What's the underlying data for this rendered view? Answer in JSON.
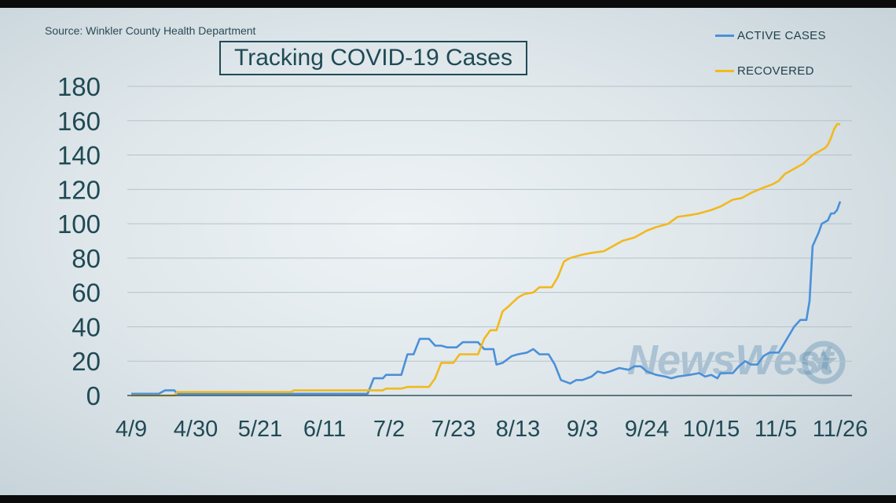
{
  "source": "Source: Winkler County Health Department",
  "title": "Tracking COVID-19 Cases",
  "watermark": "NewsWest",
  "chart_data": {
    "type": "line",
    "title": "Tracking COVID-19 Cases",
    "xlabel": "",
    "ylabel": "",
    "ylim": [
      0,
      180
    ],
    "y_ticks": [
      0,
      20,
      40,
      60,
      80,
      100,
      120,
      140,
      160,
      180
    ],
    "x_ticks": [
      "4/9",
      "4/30",
      "5/21",
      "6/11",
      "7/2",
      "7/23",
      "8/13",
      "9/3",
      "9/24",
      "10/15",
      "11/5",
      "11/26"
    ],
    "grid": true,
    "legend": "top-right",
    "series": [
      {
        "name": "ACTIVE CASES",
        "color": "#4a90d9",
        "points": [
          [
            "4/9",
            1
          ],
          [
            "4/18",
            1
          ],
          [
            "4/20",
            3
          ],
          [
            "4/23",
            3
          ],
          [
            "4/24",
            1
          ],
          [
            "6/25",
            1
          ],
          [
            "6/27",
            10
          ],
          [
            "6/30",
            10
          ],
          [
            "7/1",
            12
          ],
          [
            "7/6",
            12
          ],
          [
            "7/8",
            24
          ],
          [
            "7/10",
            24
          ],
          [
            "7/12",
            33
          ],
          [
            "7/15",
            33
          ],
          [
            "7/17",
            29
          ],
          [
            "7/19",
            29
          ],
          [
            "7/21",
            28
          ],
          [
            "7/24",
            28
          ],
          [
            "7/26",
            31
          ],
          [
            "7/31",
            31
          ],
          [
            "8/2",
            27
          ],
          [
            "8/5",
            27
          ],
          [
            "8/6",
            18
          ],
          [
            "8/8",
            19
          ],
          [
            "8/11",
            23
          ],
          [
            "8/13",
            24
          ],
          [
            "8/16",
            25
          ],
          [
            "8/18",
            27
          ],
          [
            "8/20",
            24
          ],
          [
            "8/23",
            24
          ],
          [
            "8/25",
            18
          ],
          [
            "8/27",
            9
          ],
          [
            "8/30",
            7
          ],
          [
            "9/1",
            9
          ],
          [
            "9/3",
            9
          ],
          [
            "9/6",
            11
          ],
          [
            "9/8",
            14
          ],
          [
            "9/10",
            13
          ],
          [
            "9/12",
            14
          ],
          [
            "9/15",
            16
          ],
          [
            "9/18",
            15
          ],
          [
            "9/20",
            17
          ],
          [
            "9/22",
            17
          ],
          [
            "9/24",
            14
          ],
          [
            "9/27",
            12
          ],
          [
            "9/30",
            11
          ],
          [
            "10/2",
            10
          ],
          [
            "10/4",
            11
          ],
          [
            "10/8",
            12
          ],
          [
            "10/11",
            13
          ],
          [
            "10/13",
            11
          ],
          [
            "10/15",
            12
          ],
          [
            "10/17",
            10
          ],
          [
            "10/18",
            13
          ],
          [
            "10/22",
            13
          ],
          [
            "10/24",
            17
          ],
          [
            "10/26",
            20
          ],
          [
            "10/28",
            18
          ],
          [
            "10/30",
            18
          ],
          [
            "11/1",
            23
          ],
          [
            "11/3",
            25
          ],
          [
            "11/6",
            25
          ],
          [
            "11/7",
            28
          ],
          [
            "11/9",
            34
          ],
          [
            "11/11",
            40
          ],
          [
            "11/13",
            44
          ],
          [
            "11/15",
            44
          ],
          [
            "11/16",
            55
          ],
          [
            "11/17",
            87
          ],
          [
            "11/19",
            95
          ],
          [
            "11/20",
            100
          ],
          [
            "11/22",
            102
          ],
          [
            "11/23",
            106
          ],
          [
            "11/24",
            106
          ],
          [
            "11/25",
            108
          ],
          [
            "11/26",
            113
          ]
        ]
      },
      {
        "name": "RECOVERED",
        "color": "#f2b81d",
        "points": [
          [
            "4/9",
            0
          ],
          [
            "4/23",
            0
          ],
          [
            "4/24",
            2
          ],
          [
            "5/10",
            2
          ],
          [
            "5/31",
            2
          ],
          [
            "6/1",
            3
          ],
          [
            "6/11",
            3
          ],
          [
            "6/30",
            3
          ],
          [
            "7/1",
            4
          ],
          [
            "7/6",
            4
          ],
          [
            "7/8",
            5
          ],
          [
            "7/15",
            5
          ],
          [
            "7/17",
            10
          ],
          [
            "7/19",
            19
          ],
          [
            "7/23",
            19
          ],
          [
            "7/25",
            24
          ],
          [
            "7/31",
            24
          ],
          [
            "8/2",
            33
          ],
          [
            "8/4",
            38
          ],
          [
            "8/6",
            38
          ],
          [
            "8/8",
            49
          ],
          [
            "8/10",
            52
          ],
          [
            "8/13",
            57
          ],
          [
            "8/15",
            59
          ],
          [
            "8/18",
            60
          ],
          [
            "8/20",
            63
          ],
          [
            "8/24",
            63
          ],
          [
            "8/26",
            69
          ],
          [
            "8/28",
            78
          ],
          [
            "8/30",
            80
          ],
          [
            "9/3",
            82
          ],
          [
            "9/6",
            83
          ],
          [
            "9/10",
            84
          ],
          [
            "9/13",
            87
          ],
          [
            "9/16",
            90
          ],
          [
            "9/20",
            92
          ],
          [
            "9/24",
            96
          ],
          [
            "9/27",
            98
          ],
          [
            "10/1",
            100
          ],
          [
            "10/4",
            104
          ],
          [
            "10/8",
            105
          ],
          [
            "10/11",
            106
          ],
          [
            "10/15",
            108
          ],
          [
            "10/18",
            110
          ],
          [
            "10/22",
            114
          ],
          [
            "10/25",
            115
          ],
          [
            "10/28",
            118
          ],
          [
            "11/1",
            121
          ],
          [
            "11/4",
            123
          ],
          [
            "11/6",
            125
          ],
          [
            "11/8",
            129
          ],
          [
            "11/11",
            132
          ],
          [
            "11/14",
            135
          ],
          [
            "11/17",
            140
          ],
          [
            "11/19",
            142
          ],
          [
            "11/21",
            144
          ],
          [
            "11/22",
            146
          ],
          [
            "11/23",
            150
          ],
          [
            "11/24",
            155
          ],
          [
            "11/25",
            158
          ],
          [
            "11/26",
            158
          ]
        ]
      }
    ]
  }
}
